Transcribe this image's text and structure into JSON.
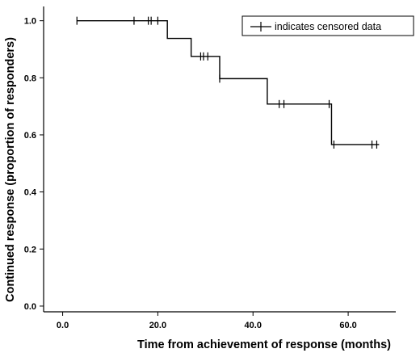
{
  "chart_data": {
    "type": "line",
    "subtype": "kaplan-meier-step",
    "xlabel": "Time from achievement of response (months)",
    "ylabel": "Continued response (proportion of responders)",
    "xlim": [
      -4,
      70
    ],
    "ylim": [
      -0.02,
      1.05
    ],
    "x_ticks": [
      0,
      20,
      40,
      60
    ],
    "x_tick_labels": [
      "0.0",
      "20.0",
      "40.0",
      "60.0"
    ],
    "y_ticks": [
      0,
      0.2,
      0.4,
      0.6,
      0.8,
      1.0
    ],
    "y_tick_labels": [
      "0.0",
      "0.2",
      "0.4",
      "0.6",
      "0.8",
      "1.0"
    ],
    "grid": false,
    "legend_position": "top-right",
    "legend_text": "indicates censored data",
    "steps": [
      {
        "x": 3,
        "y": 1.0
      },
      {
        "x": 22,
        "y": 0.938
      },
      {
        "x": 27,
        "y": 0.875
      },
      {
        "x": 33,
        "y": 0.797
      },
      {
        "x": 43,
        "y": 0.708
      },
      {
        "x": 56.5,
        "y": 0.566
      }
    ],
    "x_end": 66.5,
    "censored": [
      {
        "x": 3,
        "y": 1.0
      },
      {
        "x": 15,
        "y": 1.0
      },
      {
        "x": 18,
        "y": 1.0
      },
      {
        "x": 18.6,
        "y": 1.0
      },
      {
        "x": 20,
        "y": 1.0
      },
      {
        "x": 29,
        "y": 0.875
      },
      {
        "x": 29.6,
        "y": 0.875
      },
      {
        "x": 30.5,
        "y": 0.875
      },
      {
        "x": 33,
        "y": 0.797
      },
      {
        "x": 45.5,
        "y": 0.708
      },
      {
        "x": 46.5,
        "y": 0.708
      },
      {
        "x": 56,
        "y": 0.708
      },
      {
        "x": 57,
        "y": 0.566
      },
      {
        "x": 65,
        "y": 0.566
      },
      {
        "x": 66,
        "y": 0.566
      }
    ]
  }
}
